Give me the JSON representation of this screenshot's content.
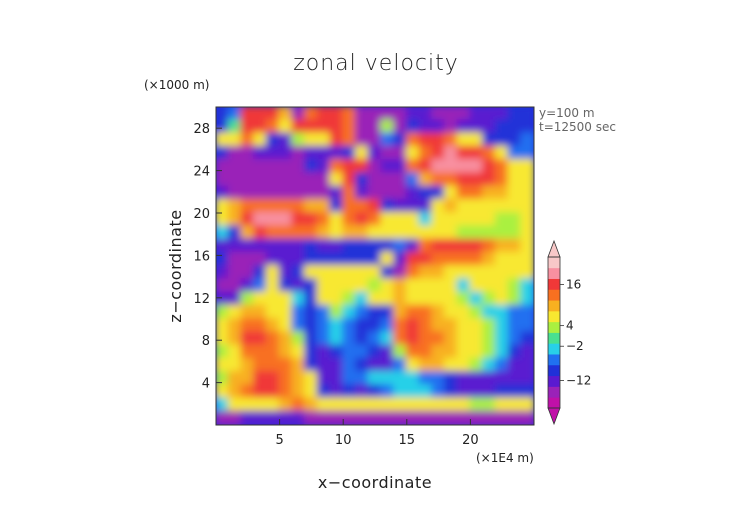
{
  "chart_data": {
    "type": "heatmap",
    "title": "zonal velocity",
    "xlabel": "x−coordinate",
    "ylabel": "z−coordinate",
    "x_unit": "(×1E4 m)",
    "y_unit": "(×1000 m)",
    "xlim": [
      0,
      25
    ],
    "ylim": [
      0,
      30
    ],
    "x_ticks": [
      5,
      10,
      15,
      20
    ],
    "y_ticks": [
      4,
      8,
      12,
      16,
      20,
      24,
      28
    ],
    "annotations": [
      "y=100 m",
      "t=12500 sec"
    ],
    "colorbar": {
      "tick_labels": [
        "16",
        "4",
        "−2",
        "−12"
      ],
      "tick_values": [
        16,
        4,
        -2,
        -12
      ],
      "levels": [
        -20,
        -16,
        -12,
        -8,
        -4,
        -2,
        0,
        2,
        4,
        8,
        12,
        16,
        20,
        24
      ],
      "colors": [
        "#c010a8",
        "#9a22b8",
        "#5a1ad0",
        "#2030d8",
        "#2070f0",
        "#28d0e8",
        "#48e090",
        "#aaf040",
        "#f8e830",
        "#f8b020",
        "#f87020",
        "#f03838",
        "#f890a0",
        "#f8c8c8"
      ]
    },
    "field_rows_top_to_bottom": [
      [
        -8,
        -4,
        16,
        18,
        18,
        8,
        -16,
        12,
        16,
        18,
        12,
        -16,
        -16,
        -16,
        -16,
        -12,
        -12,
        -16,
        -16,
        -16,
        -12,
        -12,
        -12,
        -8,
        -8
      ],
      [
        -8,
        0,
        16,
        18,
        12,
        4,
        16,
        18,
        18,
        16,
        12,
        -16,
        -16,
        2,
        -16,
        -8,
        -12,
        -12,
        -16,
        -12,
        -12,
        -12,
        -8,
        -8,
        -8
      ],
      [
        4,
        4,
        12,
        4,
        -8,
        -12,
        2,
        4,
        4,
        16,
        12,
        -16,
        -16,
        -4,
        -8,
        12,
        16,
        16,
        12,
        4,
        4,
        -8,
        -8,
        -8,
        -4
      ],
      [
        -8,
        -16,
        -16,
        -12,
        -12,
        -12,
        -16,
        -12,
        -12,
        -12,
        -8,
        4,
        -12,
        -16,
        -16,
        4,
        12,
        16,
        20,
        18,
        16,
        12,
        4,
        -4,
        -4
      ],
      [
        -16,
        -16,
        -16,
        -16,
        -16,
        -16,
        -16,
        -8,
        -12,
        12,
        16,
        16,
        -16,
        -12,
        -12,
        12,
        16,
        20,
        20,
        20,
        20,
        16,
        12,
        4,
        4
      ],
      [
        -16,
        -16,
        -16,
        -16,
        -16,
        -16,
        -16,
        -16,
        -16,
        4,
        18,
        -8,
        -16,
        -16,
        -16,
        -4,
        8,
        12,
        12,
        16,
        18,
        18,
        12,
        4,
        4
      ],
      [
        -12,
        -16,
        -16,
        -16,
        -16,
        -16,
        -16,
        -16,
        -16,
        -12,
        12,
        -12,
        -16,
        -16,
        -16,
        -12,
        -8,
        -8,
        4,
        12,
        12,
        8,
        8,
        4,
        4
      ],
      [
        4,
        8,
        12,
        12,
        12,
        12,
        12,
        8,
        8,
        -8,
        12,
        12,
        16,
        -8,
        -12,
        -12,
        -12,
        4,
        8,
        4,
        4,
        4,
        4,
        4,
        4
      ],
      [
        4,
        8,
        16,
        20,
        20,
        20,
        18,
        16,
        12,
        4,
        12,
        16,
        12,
        4,
        4,
        4,
        -2,
        4,
        4,
        4,
        4,
        4,
        2,
        2,
        4
      ],
      [
        -2,
        -8,
        8,
        16,
        12,
        12,
        12,
        12,
        8,
        4,
        8,
        8,
        4,
        4,
        4,
        4,
        4,
        4,
        4,
        2,
        2,
        2,
        2,
        2,
        4
      ],
      [
        -12,
        -12,
        -12,
        -12,
        -12,
        -12,
        -12,
        -8,
        -12,
        -12,
        -8,
        -8,
        -8,
        -8,
        -4,
        -12,
        12,
        16,
        16,
        16,
        16,
        12,
        8,
        8,
        4
      ],
      [
        -8,
        -16,
        -16,
        -16,
        -12,
        -12,
        -12,
        -8,
        -8,
        -8,
        -8,
        -8,
        -8,
        4,
        -12,
        16,
        16,
        12,
        12,
        12,
        12,
        8,
        4,
        4,
        4
      ],
      [
        -12,
        -16,
        -16,
        -8,
        4,
        -12,
        -8,
        4,
        4,
        4,
        4,
        4,
        4,
        -8,
        -16,
        12,
        8,
        8,
        4,
        4,
        4,
        4,
        4,
        4,
        4
      ],
      [
        -16,
        -16,
        -12,
        -4,
        4,
        -8,
        -12,
        -8,
        4,
        4,
        4,
        4,
        2,
        4,
        8,
        4,
        4,
        4,
        4,
        -2,
        4,
        4,
        4,
        2,
        -2
      ],
      [
        -12,
        -12,
        2,
        4,
        4,
        4,
        -2,
        -8,
        4,
        4,
        2,
        -2,
        4,
        4,
        8,
        4,
        4,
        4,
        4,
        2,
        -2,
        2,
        4,
        2,
        -2
      ],
      [
        2,
        4,
        8,
        8,
        4,
        4,
        -4,
        -8,
        -4,
        2,
        -2,
        -4,
        -8,
        -8,
        8,
        12,
        12,
        8,
        4,
        4,
        2,
        -2,
        -2,
        -4,
        -4
      ],
      [
        4,
        8,
        12,
        12,
        8,
        4,
        -4,
        -8,
        -4,
        -2,
        -4,
        -8,
        -8,
        -4,
        12,
        16,
        12,
        8,
        8,
        4,
        4,
        2,
        -2,
        -4,
        -4
      ],
      [
        4,
        8,
        16,
        16,
        12,
        8,
        2,
        -8,
        -4,
        -2,
        -4,
        -8,
        -4,
        -2,
        12,
        16,
        12,
        12,
        8,
        4,
        4,
        2,
        -2,
        -4,
        -8
      ],
      [
        2,
        4,
        12,
        12,
        12,
        8,
        4,
        -8,
        -12,
        -8,
        -4,
        -4,
        -8,
        -12,
        2,
        12,
        12,
        8,
        8,
        4,
        4,
        2,
        -2,
        -8,
        -12
      ],
      [
        4,
        4,
        8,
        12,
        12,
        12,
        8,
        -8,
        -12,
        -12,
        -4,
        -8,
        -12,
        -12,
        -4,
        4,
        8,
        8,
        4,
        4,
        2,
        -2,
        -4,
        -12,
        -12
      ],
      [
        2,
        8,
        8,
        16,
        16,
        12,
        8,
        4,
        -12,
        -12,
        -4,
        -4,
        -2,
        -2,
        -2,
        -2,
        -4,
        -4,
        -8,
        -12,
        -12,
        -12,
        -12,
        -12,
        -12
      ],
      [
        4,
        8,
        12,
        16,
        16,
        12,
        8,
        4,
        -8,
        -12,
        -8,
        -12,
        -8,
        -4,
        -2,
        -2,
        -2,
        -4,
        -8,
        -12,
        -12,
        -12,
        -8,
        -8,
        -8
      ],
      [
        -2,
        4,
        4,
        4,
        4,
        8,
        12,
        8,
        4,
        4,
        4,
        4,
        4,
        4,
        4,
        4,
        4,
        4,
        4,
        4,
        2,
        2,
        4,
        4,
        4
      ],
      [
        -16,
        -16,
        -12,
        -12,
        -12,
        -12,
        -12,
        -16,
        -16,
        -16,
        -16,
        -16,
        -16,
        -16,
        -16,
        -16,
        -16,
        -16,
        -16,
        -16,
        -16,
        -16,
        -16,
        -16,
        -16
      ]
    ]
  }
}
